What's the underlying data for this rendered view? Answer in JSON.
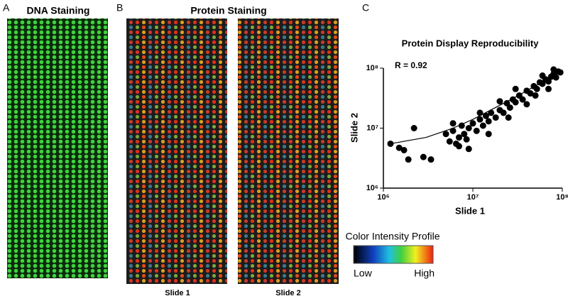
{
  "panels": {
    "A": {
      "label": "A",
      "title": "DNA Staining"
    },
    "B": {
      "label": "B",
      "title": "Protein Staining",
      "slides": [
        "Slide 1",
        "Slide 2"
      ]
    },
    "C": {
      "label": "C"
    }
  },
  "color_bar": {
    "title": "Color Intensity Profile",
    "low": "Low",
    "high": "High"
  },
  "chart_data": {
    "type": "scatter",
    "title": "Protein Display Reproducibility",
    "annotation": "R = 0.92",
    "x_label": "Slide 1",
    "y_label": "Slide 2",
    "log_scale": true,
    "color": "#000000",
    "xlim": [
      1000000,
      100000000
    ],
    "ylim": [
      1000000,
      100000000
    ],
    "xticks": [
      {
        "value": 1000000,
        "label": "10⁶"
      },
      {
        "value": 10000000,
        "label": "10⁷"
      },
      {
        "value": 100000000,
        "label": "10⁸"
      }
    ],
    "yticks": [
      {
        "value": 1000000,
        "label": "10⁶"
      },
      {
        "value": 10000000,
        "label": "10⁷"
      },
      {
        "value": 100000000,
        "label": "10⁸"
      }
    ],
    "x": [
      1200000,
      1500000,
      1700000,
      1900000,
      2200000,
      2800000,
      3400000,
      5000000,
      5500000,
      6000000,
      6500000,
      7000000,
      7500000,
      8000000,
      8500000,
      9000000,
      10000000,
      11000000,
      12000000,
      13000000,
      14000000,
      15000000,
      16000000,
      18000000,
      20000000,
      22000000,
      24000000,
      26000000,
      28000000,
      30000000,
      33000000,
      36000000,
      40000000,
      44000000,
      48000000,
      52000000,
      56000000,
      60000000,
      65000000,
      70000000,
      75000000,
      80000000,
      85000000,
      90000000,
      95000000,
      6000000,
      7000000,
      9000000,
      12000000,
      15000000,
      20000000,
      25000000,
      30000000,
      40000000,
      50000000,
      60000000,
      70000000,
      80000000
    ],
    "y": [
      5500000,
      4700000,
      4300000,
      3000000,
      10000000,
      3300000,
      3000000,
      8000000,
      6000000,
      9000000,
      5500000,
      7000000,
      11000000,
      8000000,
      6500000,
      10000000,
      12000000,
      9000000,
      14000000,
      11000000,
      16000000,
      13000000,
      18000000,
      15000000,
      20000000,
      18000000,
      26000000,
      22000000,
      30000000,
      27000000,
      35000000,
      30000000,
      42000000,
      38000000,
      50000000,
      45000000,
      58000000,
      55000000,
      65000000,
      60000000,
      72000000,
      80000000,
      70000000,
      88000000,
      85000000,
      12000000,
      5000000,
      4500000,
      18000000,
      8000000,
      28000000,
      15000000,
      45000000,
      25000000,
      35000000,
      75000000,
      45000000,
      95000000
    ],
    "fit": {
      "x": [
        1200000,
        3000000,
        6000000,
        10000000,
        30000000,
        100000000
      ],
      "y": [
        5500000,
        7000000,
        10000000,
        14000000,
        33000000,
        90000000
      ]
    }
  }
}
